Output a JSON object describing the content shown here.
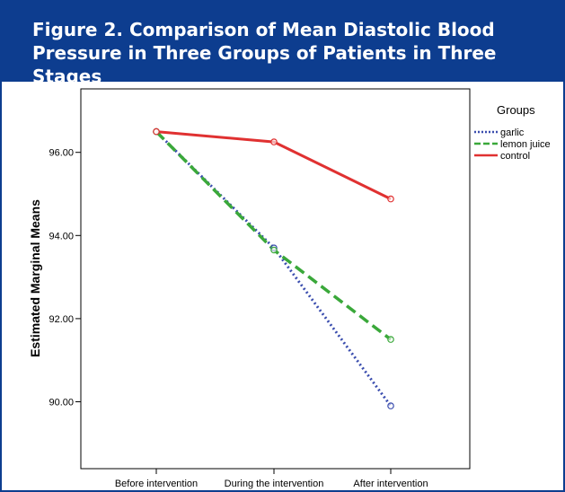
{
  "figure": {
    "title": "Figure 2. Comparison of Mean Diastolic Blood Pressure in Three Groups of Patients in Three Stages"
  },
  "chart_data": {
    "type": "line",
    "title": "Figure 2. Comparison of Mean Diastolic Blood Pressure in Three Groups of Patients in Three Stages",
    "xlabel": "",
    "ylabel": "Estimated Marginal Means",
    "categories": [
      "Before intervention",
      "During the intervention",
      "After intervention"
    ],
    "yticks": [
      "90.00",
      "92.00",
      "94.00",
      "96.00"
    ],
    "ylim": [
      89.0,
      97.0
    ],
    "grid": false,
    "legend": {
      "title": "Groups",
      "position": "top-right"
    },
    "series": [
      {
        "name": "garlic",
        "values": [
          96.5,
          93.7,
          89.9
        ],
        "color": "#3a4dae",
        "dash": "dotted"
      },
      {
        "name": "lemon juice",
        "values": [
          96.5,
          93.65,
          91.5
        ],
        "color": "#3aa83a",
        "dash": "dashed"
      },
      {
        "name": "control",
        "values": [
          96.5,
          96.25,
          94.88
        ],
        "color": "#e03131",
        "dash": "solid"
      }
    ]
  }
}
